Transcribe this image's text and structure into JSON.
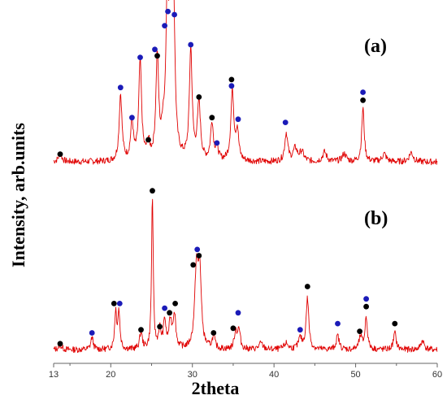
{
  "chart_data": {
    "type": "line",
    "xlabel": "2theta",
    "ylabel": "Intensity, arb.units",
    "xlim": [
      13,
      60
    ],
    "xticks": [
      20,
      30,
      40,
      50,
      60
    ],
    "xticks_shown": [
      {
        "x": 13,
        "label": "13"
      },
      {
        "x": 20,
        "label": "20"
      },
      {
        "x": 30,
        "label": "30"
      },
      {
        "x": 40,
        "label": "40"
      },
      {
        "x": 50,
        "label": "50"
      },
      {
        "x": 60,
        "label": "60"
      }
    ],
    "line_color": "#e00000",
    "marker_colors": {
      "black": "#000000",
      "blue": "#1b1bb8"
    },
    "panels": [
      {
        "label": "(a)",
        "baseline": 6,
        "ylim": [
          0,
          100
        ],
        "peaks": [
          {
            "x": 13.8,
            "h": 5,
            "w": 0.25
          },
          {
            "x": 21.2,
            "h": 42,
            "w": 0.2
          },
          {
            "x": 22.6,
            "h": 24,
            "w": 0.2
          },
          {
            "x": 23.6,
            "h": 62,
            "w": 0.2
          },
          {
            "x": 24.6,
            "h": 10,
            "w": 0.2
          },
          {
            "x": 25.7,
            "h": 64,
            "w": 0.2
          },
          {
            "x": 26.4,
            "h": 14,
            "w": 0.2
          },
          {
            "x": 26.9,
            "h": 82,
            "w": 0.2
          },
          {
            "x": 27.3,
            "h": 92,
            "w": 0.22
          },
          {
            "x": 27.7,
            "h": 88,
            "w": 0.2
          },
          {
            "x": 29.8,
            "h": 70,
            "w": 0.2
          },
          {
            "x": 30.8,
            "h": 36,
            "w": 0.22
          },
          {
            "x": 32.4,
            "h": 24,
            "w": 0.2
          },
          {
            "x": 33.0,
            "h": 8,
            "w": 0.2
          },
          {
            "x": 34.9,
            "h": 44,
            "w": 0.22
          },
          {
            "x": 35.5,
            "h": 18,
            "w": 0.2
          },
          {
            "x": 41.5,
            "h": 18,
            "w": 0.22
          },
          {
            "x": 42.6,
            "h": 8,
            "w": 0.3
          },
          {
            "x": 43.4,
            "h": 6,
            "w": 0.3
          },
          {
            "x": 46.2,
            "h": 6,
            "w": 0.3
          },
          {
            "x": 48.6,
            "h": 5,
            "w": 0.3
          },
          {
            "x": 50.9,
            "h": 34,
            "w": 0.18
          },
          {
            "x": 53.5,
            "h": 5,
            "w": 0.3
          },
          {
            "x": 56.8,
            "h": 6,
            "w": 0.3
          }
        ],
        "markers": [
          {
            "x": 13.8,
            "h": 11,
            "color": "black"
          },
          {
            "x": 21.2,
            "h": 53,
            "color": "blue"
          },
          {
            "x": 22.6,
            "h": 34,
            "color": "blue"
          },
          {
            "x": 23.6,
            "h": 72,
            "color": "blue"
          },
          {
            "x": 24.6,
            "h": 20,
            "color": "black"
          },
          {
            "x": 25.4,
            "h": 77,
            "color": "blue"
          },
          {
            "x": 25.7,
            "h": 73,
            "color": "black"
          },
          {
            "x": 26.6,
            "h": 92,
            "color": "blue"
          },
          {
            "x": 27.0,
            "h": 101,
            "color": "blue"
          },
          {
            "x": 27.8,
            "h": 99,
            "color": "blue"
          },
          {
            "x": 29.8,
            "h": 80,
            "color": "blue"
          },
          {
            "x": 30.8,
            "h": 47,
            "color": "black"
          },
          {
            "x": 32.4,
            "h": 34,
            "color": "black"
          },
          {
            "x": 33.0,
            "h": 18,
            "color": "blue"
          },
          {
            "x": 34.8,
            "h": 58,
            "color": "black"
          },
          {
            "x": 34.8,
            "h": 54,
            "color": "blue"
          },
          {
            "x": 35.6,
            "h": 33,
            "color": "blue"
          },
          {
            "x": 41.4,
            "h": 31,
            "color": "blue"
          },
          {
            "x": 50.9,
            "h": 50,
            "color": "blue"
          },
          {
            "x": 50.9,
            "h": 45,
            "color": "black"
          }
        ]
      },
      {
        "label": "(b)",
        "baseline": 4,
        "ylim": [
          0,
          100
        ],
        "peaks": [
          {
            "x": 13.8,
            "h": 3,
            "w": 0.25
          },
          {
            "x": 17.7,
            "h": 8,
            "w": 0.18
          },
          {
            "x": 20.6,
            "h": 24,
            "w": 0.15
          },
          {
            "x": 21.0,
            "h": 24,
            "w": 0.15
          },
          {
            "x": 23.7,
            "h": 11,
            "w": 0.18
          },
          {
            "x": 25.1,
            "h": 100,
            "w": 0.12
          },
          {
            "x": 26.0,
            "h": 12,
            "w": 0.18
          },
          {
            "x": 26.6,
            "h": 18,
            "w": 0.18
          },
          {
            "x": 27.3,
            "h": 17,
            "w": 0.2
          },
          {
            "x": 27.8,
            "h": 22,
            "w": 0.2
          },
          {
            "x": 30.5,
            "h": 50,
            "w": 0.25
          },
          {
            "x": 30.9,
            "h": 47,
            "w": 0.22
          },
          {
            "x": 32.6,
            "h": 8,
            "w": 0.2
          },
          {
            "x": 35.3,
            "h": 11,
            "w": 0.2
          },
          {
            "x": 35.7,
            "h": 12,
            "w": 0.2
          },
          {
            "x": 38.4,
            "h": 4,
            "w": 0.3
          },
          {
            "x": 41.5,
            "h": 4,
            "w": 0.3
          },
          {
            "x": 43.2,
            "h": 7,
            "w": 0.25
          },
          {
            "x": 44.1,
            "h": 33,
            "w": 0.2
          },
          {
            "x": 47.8,
            "h": 9,
            "w": 0.22
          },
          {
            "x": 50.6,
            "h": 8,
            "w": 0.22
          },
          {
            "x": 51.3,
            "h": 21,
            "w": 0.18
          },
          {
            "x": 54.8,
            "h": 11,
            "w": 0.2
          },
          {
            "x": 58.2,
            "h": 6,
            "w": 0.25
          }
        ],
        "markers": [
          {
            "x": 13.8,
            "h": 8,
            "color": "black"
          },
          {
            "x": 17.7,
            "h": 15,
            "color": "blue"
          },
          {
            "x": 20.4,
            "h": 34,
            "color": "black"
          },
          {
            "x": 21.1,
            "h": 34,
            "color": "blue"
          },
          {
            "x": 23.7,
            "h": 17,
            "color": "black"
          },
          {
            "x": 25.1,
            "h": 107,
            "color": "black"
          },
          {
            "x": 26.0,
            "h": 19,
            "color": "black"
          },
          {
            "x": 26.6,
            "h": 31,
            "color": "blue"
          },
          {
            "x": 27.2,
            "h": 28,
            "color": "black"
          },
          {
            "x": 27.9,
            "h": 34,
            "color": "black"
          },
          {
            "x": 30.1,
            "h": 59,
            "color": "black"
          },
          {
            "x": 30.6,
            "h": 69,
            "color": "blue"
          },
          {
            "x": 30.8,
            "h": 65,
            "color": "black"
          },
          {
            "x": 32.6,
            "h": 15,
            "color": "black"
          },
          {
            "x": 35.0,
            "h": 18,
            "color": "black"
          },
          {
            "x": 35.6,
            "h": 28,
            "color": "blue"
          },
          {
            "x": 43.2,
            "h": 17,
            "color": "blue"
          },
          {
            "x": 44.1,
            "h": 45,
            "color": "black"
          },
          {
            "x": 47.8,
            "h": 21,
            "color": "blue"
          },
          {
            "x": 50.5,
            "h": 16,
            "color": "black"
          },
          {
            "x": 51.3,
            "h": 37,
            "color": "blue"
          },
          {
            "x": 51.3,
            "h": 32,
            "color": "black"
          },
          {
            "x": 54.8,
            "h": 21,
            "color": "black"
          }
        ]
      }
    ]
  }
}
